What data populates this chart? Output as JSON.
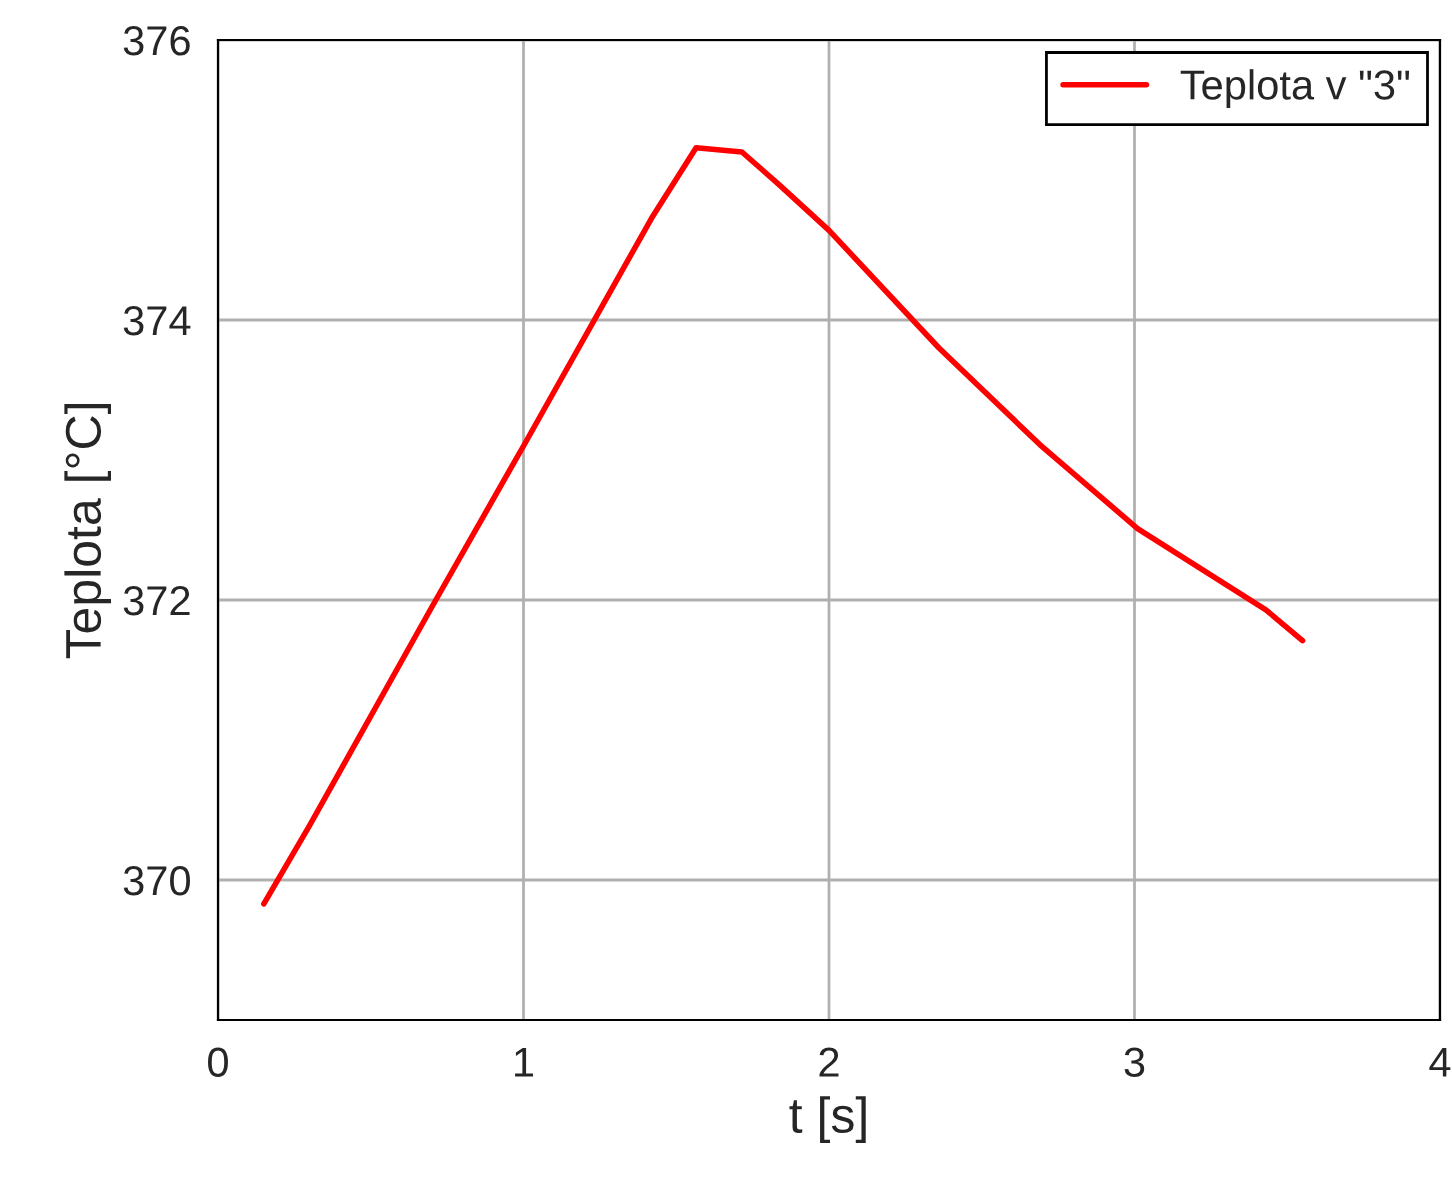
{
  "chart_data": {
    "type": "line",
    "xlabel": "t [s]",
    "ylabel": "Teplota [°C]",
    "xlim": [
      0,
      4
    ],
    "xticks": [
      0,
      1,
      2,
      3,
      4
    ],
    "ylim": [
      369,
      376
    ],
    "yticks": [
      370,
      372,
      374,
      376
    ],
    "grid": true,
    "legend": "top right",
    "series": [
      {
        "name": "Teplota v \"3\"",
        "color": "#ff0000",
        "x": [
          0.15,
          0.3,
          0.7,
          1.0,
          1.42,
          1.565,
          1.715,
          1.84,
          2.0,
          2.36,
          2.69,
          3.01,
          3.43,
          3.55
        ],
        "values": [
          369.83,
          370.39,
          371.95,
          373.1,
          374.73,
          375.23,
          375.2,
          374.96,
          374.64,
          373.8,
          373.11,
          372.51,
          371.93,
          371.71
        ]
      }
    ]
  }
}
